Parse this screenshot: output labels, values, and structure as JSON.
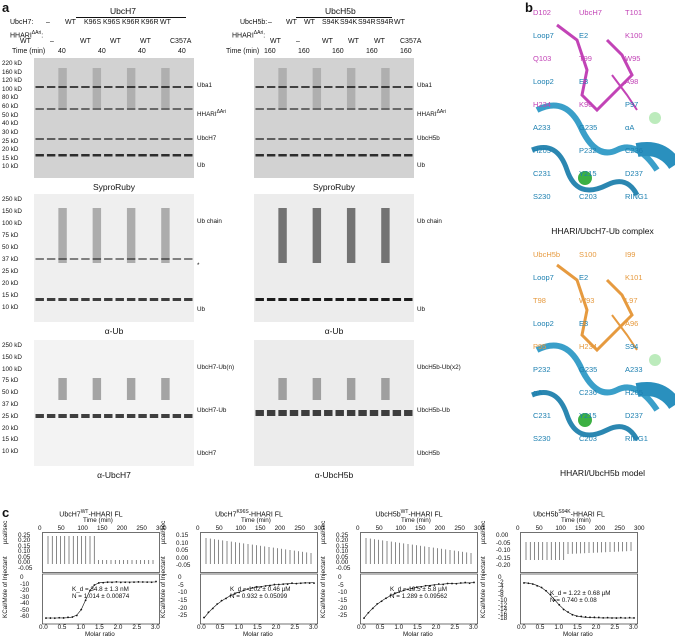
{
  "panel_labels": {
    "a": "a",
    "b": "b",
    "c": "c"
  },
  "panel_a": {
    "left": {
      "header": "UbcH7",
      "row1_label": "UbcH7:",
      "row1_values": [
        "–",
        "WT",
        "K96S",
        "K96S",
        "K96R",
        "K96R",
        "WT"
      ],
      "row2_label": "HHARI",
      "row2_sup": "ΔAri",
      "row2_values": [
        "WT",
        "–",
        "WT",
        "WT",
        "WT",
        "C357A"
      ],
      "time_label": "Time (min)",
      "time_values": [
        "40",
        "40",
        "40",
        "40"
      ],
      "gels": [
        {
          "caption": "SyproRuby",
          "mw": [
            "220 kD",
            "160 kD",
            "120 kD",
            "100 kD",
            "80 kD",
            "60 kD",
            "50 kD",
            "40 kD",
            "30 kD",
            "25 kD",
            "20 kD",
            "15 kD",
            "10 kD"
          ],
          "bands": [
            "Uba1",
            "HHARI",
            "UbcH7",
            "Ub"
          ],
          "band_sup": [
            "",
            "ΔAri",
            "",
            ""
          ]
        },
        {
          "caption": "α-Ub",
          "mw": [
            "250 kD",
            "150 kD",
            "100 kD",
            "75 kD",
            "50 kD",
            "37 kD",
            "25 kD",
            "20 kD",
            "15 kD",
            "10 kD"
          ],
          "bands": [
            "Ub chain",
            "*",
            "Ub"
          ]
        },
        {
          "caption": "α-UbcH7",
          "mw": [
            "250 kD",
            "150 kD",
            "100 kD",
            "75 kD",
            "50 kD",
            "37 kD",
            "25 kD",
            "20 kD",
            "15 kD",
            "10 kD"
          ],
          "bands": [
            "UbcH7-Ub(n)",
            "UbcH7-Ub",
            "UbcH7"
          ]
        }
      ]
    },
    "right": {
      "header": "UbcH5b",
      "row1_label": "UbcH5b:",
      "row1_values": [
        "–",
        "WT",
        "WT",
        "S94K",
        "S94K",
        "S94R",
        "S94R",
        "WT"
      ],
      "row2_label": "HHARI",
      "row2_sup": "ΔAri",
      "row2_values": [
        "WT",
        "–",
        "WT",
        "WT",
        "WT",
        "C357A"
      ],
      "time_label": "Time (min)",
      "time_values": [
        "160",
        "160",
        "160",
        "160",
        "160"
      ],
      "gels": [
        {
          "caption": "SyproRuby",
          "bands": [
            "Uba1",
            "HHARI",
            "UbcH5b",
            "Ub"
          ],
          "band_sup": [
            "",
            "ΔAri",
            "",
            ""
          ]
        },
        {
          "caption": "α-Ub",
          "bands": [
            "Ub chain",
            "Ub"
          ]
        },
        {
          "caption": "α-UbcH5b",
          "bands": [
            "UbcH5b-Ub(x2)",
            "UbcH5b-Ub",
            "UbcH5b"
          ]
        }
      ]
    }
  },
  "panel_b": {
    "top": {
      "caption": "HHARI/UbcH7-Ub complex",
      "labels": [
        "D102",
        "UbcH7",
        "T101",
        "Loop7",
        "E2",
        "K100",
        "Q103",
        "T99",
        "W95",
        "Loop2",
        "E3",
        "A98",
        "H234",
        "K96",
        "P97",
        "A233",
        "G235",
        "αA",
        "H205",
        "P232",
        "C236",
        "C231",
        "Y215",
        "D237",
        "S230",
        "C203",
        "RING1"
      ]
    },
    "bottom": {
      "caption": "HHARI/UbcH5b model",
      "labels": [
        "UbcH5b",
        "S100",
        "I99",
        "Loop7",
        "E2",
        "K101",
        "T98",
        "W93",
        "L97",
        "Loop2",
        "E3",
        "A96",
        "P95",
        "H234",
        "S94",
        "P232",
        "G235",
        "A233",
        "αA",
        "C236",
        "H205",
        "C231",
        "Y215",
        "D237",
        "S230",
        "C203",
        "RING1"
      ]
    }
  },
  "panel_c": {
    "xaxis_label": "Molar ratio",
    "top_axis_label": "Time (min)",
    "top_ylabel": "µcal/sec",
    "bottom_ylabel": "KCal/Mole of Injectant",
    "plots": [
      {
        "title_pre": "UbcH7",
        "title_sup": "WT",
        "title_post": "-HHARI FL",
        "kd": "K_d = 34.8 ± 1.3 nM",
        "n": "N = 1.014 ± 0.00874",
        "top_ticks": [
          "0",
          "50",
          "100",
          "150",
          "200",
          "250",
          "300"
        ],
        "top_yticks": [
          "0.25",
          "0.20",
          "0.15",
          "0.10",
          "0.05",
          "0.00",
          "-0.05"
        ],
        "bot_yticks": [
          "0",
          "-10",
          "-20",
          "-30",
          "-40",
          "-50",
          "-60"
        ],
        "xticks": [
          "0.0",
          "0.5",
          "1.0",
          "1.5",
          "2.0",
          "2.5",
          "3.0"
        ]
      },
      {
        "title_pre": "UbcH7",
        "title_sup": "K96S",
        "title_post": "-HHARI FL",
        "kd": "K_d = 1.02 ± 0.46 µM",
        "n": "N = 0.932 ± 0.05099",
        "top_ticks": [
          "0",
          "50",
          "100",
          "150",
          "200",
          "250",
          "300"
        ],
        "top_yticks": [
          "0.15",
          "0.10",
          "0.05",
          "0.00",
          "-0.05"
        ],
        "bot_yticks": [
          "0",
          "-5",
          "-10",
          "-15",
          "-20",
          "-25"
        ],
        "xticks": [
          "0.0",
          "0.5",
          "1.0",
          "1.5",
          "2.0",
          "2.5",
          "3.0"
        ]
      },
      {
        "title_pre": "UbcH5b",
        "title_sup": "WT",
        "title_post": "-HHARI FL",
        "kd": "K_d = 19.5 ± 5.8 µM",
        "n": "N = 1.289 ± 0.09562",
        "top_ticks": [
          "0",
          "50",
          "100",
          "150",
          "200",
          "250",
          "300"
        ],
        "top_yticks": [
          "0.25",
          "0.20",
          "0.15",
          "0.10",
          "0.05",
          "0.00",
          "-0.05"
        ],
        "bot_yticks": [
          "0",
          "-5",
          "-10",
          "-15",
          "-20",
          "-25"
        ],
        "xticks": [
          "0.0",
          "0.5",
          "1.0",
          "1.5",
          "2.0",
          "2.5",
          "3.0"
        ]
      },
      {
        "title_pre": "UbcH5b",
        "title_sup": "S94K",
        "title_post": "-HHARI FL",
        "kd": "K_d = 1.22 ± 0.68 µM",
        "n": "N = 0.740 ± 0.08",
        "top_ticks": [
          "0",
          "50",
          "100",
          "150",
          "200",
          "250",
          "300"
        ],
        "top_yticks": [
          "0.00",
          "-0.05",
          "-0.10",
          "-0.15",
          "-0.20"
        ],
        "bot_yticks": [
          "0",
          "-2",
          "-4",
          "-6",
          "-8",
          "-10",
          "-12",
          "-14",
          "-16",
          "-18"
        ],
        "xticks": [
          "0.0",
          "0.5",
          "1.0",
          "1.5",
          "2.0",
          "2.5",
          "3.0"
        ]
      }
    ]
  },
  "colors": {
    "ubch7": "#c243b6",
    "ubch5b": "#e69a3f",
    "hhari": "#3a9fc9",
    "zinc": "#3cb043"
  }
}
